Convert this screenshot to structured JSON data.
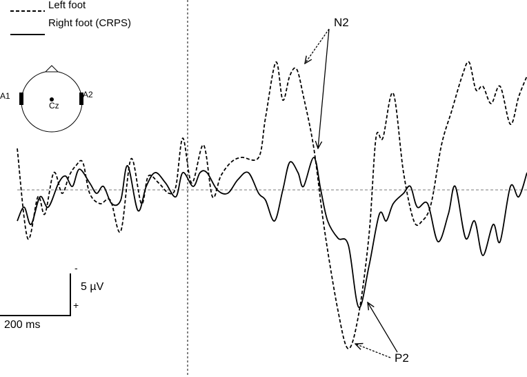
{
  "chart_data": {
    "type": "line",
    "series": [
      {
        "name": "Left foot",
        "line_style": "dashed",
        "points": [
          [
            25,
            215
          ],
          [
            40,
            345
          ],
          [
            55,
            285
          ],
          [
            65,
            310
          ],
          [
            78,
            250
          ],
          [
            90,
            280
          ],
          [
            100,
            255
          ],
          [
            110,
            240
          ],
          [
            120,
            235
          ],
          [
            130,
            280
          ],
          [
            145,
            295
          ],
          [
            160,
            290
          ],
          [
            175,
            335
          ],
          [
            190,
            230
          ],
          [
            205,
            295
          ],
          [
            215,
            255
          ],
          [
            230,
            265
          ],
          [
            245,
            280
          ],
          [
            255,
            270
          ],
          [
            265,
            200
          ],
          [
            278,
            265
          ],
          [
            295,
            210
          ],
          [
            308,
            285
          ],
          [
            320,
            255
          ],
          [
            335,
            235
          ],
          [
            350,
            228
          ],
          [
            375,
            228
          ],
          [
            385,
            170
          ],
          [
            400,
            90
          ],
          [
            410,
            145
          ],
          [
            420,
            110
          ],
          [
            430,
            100
          ],
          [
            440,
            140
          ],
          [
            455,
            215
          ],
          [
            470,
            330
          ],
          [
            490,
            450
          ],
          [
            505,
            505
          ],
          [
            520,
            455
          ],
          [
            535,
            340
          ],
          [
            545,
            200
          ],
          [
            555,
            200
          ],
          [
            570,
            135
          ],
          [
            585,
            250
          ],
          [
            600,
            320
          ],
          [
            612,
            320
          ],
          [
            625,
            295
          ],
          [
            640,
            210
          ],
          [
            655,
            160
          ],
          [
            670,
            110
          ],
          [
            680,
            90
          ],
          [
            690,
            130
          ],
          [
            700,
            125
          ],
          [
            712,
            150
          ],
          [
            725,
            125
          ],
          [
            740,
            180
          ],
          [
            752,
            140
          ],
          [
            764,
            110
          ]
        ]
      },
      {
        "name": "Right foot (CRPS)",
        "line_style": "solid",
        "points": [
          [
            25,
            320
          ],
          [
            35,
            300
          ],
          [
            45,
            325
          ],
          [
            58,
            285
          ],
          [
            70,
            300
          ],
          [
            85,
            265
          ],
          [
            95,
            255
          ],
          [
            105,
            270
          ],
          [
            115,
            245
          ],
          [
            130,
            265
          ],
          [
            140,
            280
          ],
          [
            150,
            270
          ],
          [
            162,
            295
          ],
          [
            175,
            290
          ],
          [
            185,
            240
          ],
          [
            200,
            305
          ],
          [
            212,
            270
          ],
          [
            225,
            250
          ],
          [
            240,
            265
          ],
          [
            255,
            285
          ],
          [
            265,
            250
          ],
          [
            280,
            270
          ],
          [
            290,
            250
          ],
          [
            300,
            250
          ],
          [
            315,
            275
          ],
          [
            330,
            280
          ],
          [
            345,
            260
          ],
          [
            360,
            250
          ],
          [
            375,
            280
          ],
          [
            385,
            290
          ],
          [
            398,
            320
          ],
          [
            410,
            275
          ],
          [
            420,
            235
          ],
          [
            432,
            250
          ],
          [
            440,
            270
          ],
          [
            455,
            228
          ],
          [
            465,
            275
          ],
          [
            475,
            320
          ],
          [
            490,
            345
          ],
          [
            505,
            355
          ],
          [
            520,
            445
          ],
          [
            535,
            385
          ],
          [
            550,
            310
          ],
          [
            560,
            320
          ],
          [
            570,
            295
          ],
          [
            585,
            280
          ],
          [
            595,
            270
          ],
          [
            605,
            300
          ],
          [
            620,
            295
          ],
          [
            635,
            350
          ],
          [
            650,
            310
          ],
          [
            660,
            270
          ],
          [
            675,
            345
          ],
          [
            688,
            320
          ],
          [
            700,
            370
          ],
          [
            715,
            325
          ],
          [
            725,
            350
          ],
          [
            740,
            270
          ],
          [
            752,
            285
          ],
          [
            764,
            250
          ]
        ]
      }
    ],
    "baseline": "zero-line",
    "onset_marker": "stimulus",
    "annotations": [
      "N2",
      "P2"
    ],
    "scale_bar_amplitude": "5 µV",
    "scale_bar_time": "200 ms",
    "polarity_up": "-",
    "polarity_down": "+",
    "electrode_labels": [
      "A1",
      "A2",
      "Cz"
    ],
    "legend_placement": "top-left",
    "grid": false
  }
}
